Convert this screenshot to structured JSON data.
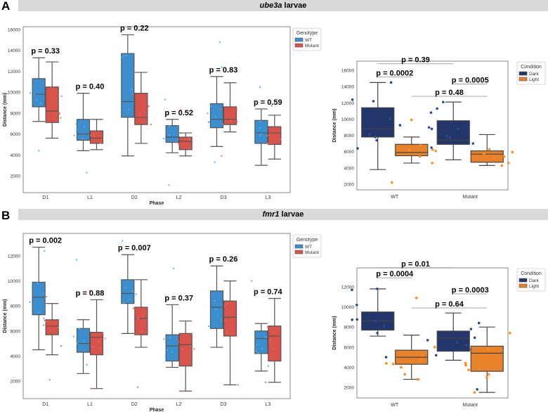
{
  "panels": {
    "A": {
      "letter": "A",
      "gene": "ube3a",
      "suffix": " larvae"
    },
    "B": {
      "letter": "B",
      "gene": "fmr1",
      "suffix": " larvae"
    }
  },
  "chart_data": [
    {
      "id": "A-phase",
      "type": "box",
      "title": "",
      "xlabel": "Phase",
      "ylabel": "Distance (mm)",
      "ylim": [
        0,
        16000
      ],
      "yticks": [
        2000,
        4000,
        6000,
        8000,
        10000,
        12000,
        14000,
        16000
      ],
      "categories": [
        "D1",
        "L1",
        "D2",
        "L2",
        "D3",
        "L3"
      ],
      "legend": {
        "title": "Genotype",
        "position": "outside-top-right",
        "entries": [
          "WT",
          "Mutant"
        ]
      },
      "colors": {
        "WT": "#3b8fcf",
        "Mutant": "#d9534a"
      },
      "series": [
        {
          "name": "WT",
          "boxes": [
            {
              "whislo": 7200,
              "q1": 8600,
              "med": 9800,
              "q3": 11300,
              "whishi": 13300,
              "fliers": [
                4400
              ]
            },
            {
              "whislo": 4400,
              "q1": 5400,
              "med": 6000,
              "q3": 7400,
              "whishi": 9900,
              "fliers": [
                2300
              ]
            },
            {
              "whislo": 3900,
              "q1": 7600,
              "med": 9100,
              "q3": 13700,
              "whishi": 15500,
              "fliers": []
            },
            {
              "whislo": 4200,
              "q1": 5200,
              "med": 5700,
              "q3": 6800,
              "whishi": 7400,
              "fliers": [
                1100,
                9300
              ]
            },
            {
              "whislo": 4800,
              "q1": 6600,
              "med": 7400,
              "q3": 8900,
              "whishi": 11500,
              "fliers": [
                3300,
                12400,
                14800
              ]
            },
            {
              "whislo": 3000,
              "q1": 5100,
              "med": 6100,
              "q3": 7300,
              "whishi": 8400,
              "fliers": [
                10500
              ]
            }
          ]
        },
        {
          "name": "Mutant",
          "boxes": [
            {
              "whislo": 5600,
              "q1": 7100,
              "med": 8200,
              "q3": 10500,
              "whishi": 12900,
              "fliers": []
            },
            {
              "whislo": 4500,
              "q1": 5100,
              "med": 5600,
              "q3": 6300,
              "whishi": 7400,
              "fliers": []
            },
            {
              "whislo": 5100,
              "q1": 6900,
              "med": 7600,
              "q3": 9900,
              "whishi": 11900,
              "fliers": []
            },
            {
              "whislo": 3900,
              "q1": 4500,
              "med": 5300,
              "q3": 5700,
              "whishi": 6100,
              "fliers": [
                8300
              ]
            },
            {
              "whislo": 6200,
              "q1": 6900,
              "med": 7400,
              "q3": 8600,
              "whishi": 10900,
              "fliers": [
                3900
              ]
            },
            {
              "whislo": 3600,
              "q1": 5000,
              "med": 6100,
              "q3": 6700,
              "whishi": 7800,
              "fliers": [
                8700
              ]
            }
          ]
        }
      ],
      "annotations": [
        "p = 0.33",
        "p = 0.40",
        "p = 0.22",
        "p = 0.52",
        "p = 0.83",
        "p = 0.59"
      ]
    },
    {
      "id": "A-condition",
      "type": "box",
      "title": "",
      "xlabel": "",
      "ylabel": "Distance (mm)",
      "ylim": [
        1500,
        17000
      ],
      "yticks": [
        2000,
        4000,
        6000,
        8000,
        10000,
        12000,
        14000,
        16000
      ],
      "categories": [
        "WT",
        "Mutant"
      ],
      "legend": {
        "title": "Condition",
        "position": "outside-top-right",
        "entries": [
          "Dark",
          "Light"
        ]
      },
      "colors": {
        "Dark": "#22366b",
        "Light": "#e8822a"
      },
      "series": [
        {
          "name": "Dark",
          "boxes": [
            {
              "whislo": 3800,
              "q1": 7800,
              "med": 8800,
              "q3": 11400,
              "whishi": 14500,
              "fliers": [
                6400,
                7400,
                12200,
                12400,
                14500
              ]
            },
            {
              "whislo": 5000,
              "q1": 6900,
              "med": 7400,
              "q3": 9800,
              "whishi": 12100,
              "fliers": [
                6500,
                7000,
                8800,
                10800,
                11300,
                12100
              ]
            }
          ]
        },
        {
          "name": "Light",
          "boxes": [
            {
              "whislo": 4600,
              "q1": 5500,
              "med": 5900,
              "q3": 6900,
              "whishi": 7800,
              "fliers": [
                2200,
                4600,
                5400,
                9900
              ]
            },
            {
              "whislo": 4300,
              "q1": 4700,
              "med": 5700,
              "q3": 6100,
              "whishi": 8100,
              "fliers": [
                4300,
                4600,
                6300
              ]
            }
          ]
        }
      ],
      "comparisons": [
        {
          "label": "p = 0.39",
          "level": 16800
        },
        {
          "label": "p = 0.0002",
          "level": 15200
        },
        {
          "label": "p = 0.0005",
          "level": 14300
        },
        {
          "label": "p = 0.48",
          "level": 12800
        }
      ]
    },
    {
      "id": "B-phase",
      "type": "box",
      "title": "",
      "xlabel": "Phase",
      "ylabel": "Distance (mm)",
      "ylim": [
        0,
        13800
      ],
      "yticks": [
        2000,
        4000,
        6000,
        8000,
        10000,
        12000
      ],
      "categories": [
        "D1",
        "L1",
        "D2",
        "L2",
        "D3",
        "L3"
      ],
      "legend": {
        "title": "Genotype",
        "position": "outside-top-right",
        "entries": [
          "WT",
          "Mutant"
        ]
      },
      "colors": {
        "WT": "#3b8fcf",
        "Mutant": "#d9534a"
      },
      "series": [
        {
          "name": "WT",
          "boxes": [
            {
              "whislo": 4500,
              "q1": 7300,
              "med": 8700,
              "q3": 9900,
              "whishi": 12700,
              "fliers": [
                7000,
                12400
              ]
            },
            {
              "whislo": 2600,
              "q1": 4300,
              "med": 5000,
              "q3": 6200,
              "whishi": 6900,
              "fliers": [
                3300,
                11700
              ]
            },
            {
              "whislo": 5800,
              "q1": 8200,
              "med": 9000,
              "q3": 10100,
              "whishi": 12100,
              "fliers": [
                13200
              ]
            },
            {
              "whislo": 3100,
              "q1": 3600,
              "med": 4800,
              "q3": 5700,
              "whishi": 8100,
              "fliers": [
                11000
              ]
            },
            {
              "whislo": 4700,
              "q1": 6200,
              "med": 7900,
              "q3": 9200,
              "whishi": 11200,
              "fliers": []
            },
            {
              "whislo": 2800,
              "q1": 4200,
              "med": 5400,
              "q3": 6000,
              "whishi": 6600,
              "fliers": [
                3200,
                10000
              ]
            }
          ]
        },
        {
          "name": "Mutant",
          "boxes": [
            {
              "whislo": 4100,
              "q1": 5700,
              "med": 6400,
              "q3": 6900,
              "whishi": 8200,
              "fliers": [
                2100,
                4800
              ]
            },
            {
              "whislo": 1400,
              "q1": 4100,
              "med": 5500,
              "q3": 5900,
              "whishi": 8500,
              "fliers": [
                1400,
                9200
              ]
            },
            {
              "whislo": 4700,
              "q1": 5700,
              "med": 7000,
              "q3": 7900,
              "whishi": 10100,
              "fliers": [
                1500
              ]
            },
            {
              "whislo": 1200,
              "q1": 3200,
              "med": 4900,
              "q3": 5800,
              "whishi": 6800,
              "fliers": [
                1200
              ]
            },
            {
              "whislo": 1700,
              "q1": 5600,
              "med": 7100,
              "q3": 8400,
              "whishi": 10000,
              "fliers": [
                1700
              ]
            },
            {
              "whislo": 1900,
              "q1": 3600,
              "med": 5600,
              "q3": 6400,
              "whishi": 8600,
              "fliers": [
                1900
              ]
            }
          ]
        }
      ],
      "annotations": [
        "p = 0.002",
        "p = 0.88",
        "p = 0.007",
        "p = 0.37",
        "p = 0.26",
        "p = 0.74"
      ]
    },
    {
      "id": "B-condition",
      "type": "box",
      "title": "",
      "xlabel": "",
      "ylabel": "Distance (mm)",
      "ylim": [
        1000,
        14300
      ],
      "yticks": [
        2000,
        4000,
        6000,
        8000,
        10000,
        12000
      ],
      "categories": [
        "WT",
        "Mutant"
      ],
      "legend": {
        "title": "Condition",
        "position": "outside-top-right",
        "entries": [
          "Dark",
          "Light"
        ]
      },
      "colors": {
        "Dark": "#22366b",
        "Light": "#e8822a"
      },
      "series": [
        {
          "name": "Dark",
          "boxes": [
            {
              "whislo": 7100,
              "q1": 7700,
              "med": 8600,
              "q3": 9500,
              "whishi": 11800,
              "fliers": [
                5000,
                7400,
                10200,
                11700,
                11800
              ]
            },
            {
              "whislo": 4700,
              "q1": 5600,
              "med": 6900,
              "q3": 7600,
              "whishi": 9400,
              "fliers": [
                1800,
                4700,
                5200,
                6700,
                7800,
                8400
              ]
            }
          ]
        },
        {
          "name": "Light",
          "boxes": [
            {
              "whislo": 2800,
              "q1": 4300,
              "med": 5000,
              "q3": 5700,
              "whishi": 7200,
              "fliers": [
                2800,
                3300,
                4000,
                6000,
                10900
              ]
            },
            {
              "whislo": 1500,
              "q1": 3600,
              "med": 5400,
              "q3": 6100,
              "whishi": 8000,
              "fliers": [
                1500,
                3000,
                3300,
                5800,
                7400
              ]
            }
          ]
        }
      ],
      "comparisons": [
        {
          "label": "p = 0.01",
          "level": 13900
        },
        {
          "label": "p = 0.0004",
          "level": 12900
        },
        {
          "label": "p = 0.0003",
          "level": 11300
        },
        {
          "label": "p = 0.64",
          "level": 9900
        }
      ]
    }
  ]
}
